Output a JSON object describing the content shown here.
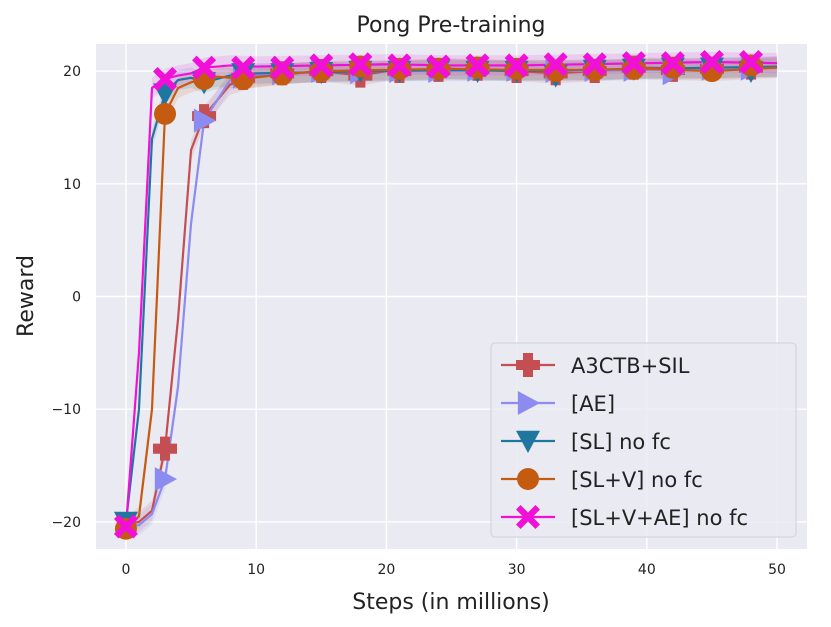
{
  "chart_data": {
    "type": "line",
    "title": "Pong Pre-training",
    "xlabel": "Steps (in millions)",
    "ylabel": "Reward",
    "xlim": [
      -2.3,
      52.3
    ],
    "ylim": [
      -22.4,
      22.4
    ],
    "xticks": [
      0,
      10,
      20,
      30,
      40,
      50
    ],
    "xtick_labels": [
      "0",
      "10",
      "20",
      "30",
      "40",
      "50"
    ],
    "yticks": [
      -20,
      -10,
      0,
      10,
      20
    ],
    "ytick_labels": [
      "−20",
      "−10",
      "0",
      "10",
      "20"
    ],
    "grid": true,
    "legend_position": "lower-right",
    "series": [
      {
        "name": "A3CTB+SIL",
        "color": "#c44e52",
        "marker": "plus",
        "x": [
          0,
          1,
          2,
          3,
          4,
          5,
          6,
          8,
          10,
          15,
          18,
          20,
          25,
          30,
          33,
          36,
          40,
          45,
          50
        ],
        "y": [
          -20.2,
          -20.0,
          -19.0,
          -13.5,
          -2.0,
          13.0,
          16.0,
          18.8,
          19.5,
          20.0,
          19.6,
          20.0,
          20.2,
          20.0,
          19.8,
          20.0,
          20.3,
          20.2,
          20.4
        ],
        "marker_x": [
          3,
          6,
          9,
          12,
          15,
          18,
          21,
          24,
          27,
          30,
          33,
          36,
          39,
          42,
          45,
          48
        ],
        "marker_y": [
          -13.5,
          16.0,
          19.4,
          19.8,
          20.0,
          19.6,
          20.0,
          20.1,
          20.2,
          20.0,
          19.8,
          20.0,
          20.3,
          20.1,
          20.2,
          20.3
        ]
      },
      {
        "name": "[AE]",
        "color": "#8c8cf0",
        "marker": "triangle-right",
        "x": [
          0,
          1,
          2,
          3,
          4,
          5,
          6,
          8,
          10,
          15,
          20,
          25,
          30,
          35,
          40,
          45,
          50
        ],
        "y": [
          -20.2,
          -20.3,
          -19.3,
          -16.2,
          -8.0,
          6.5,
          15.6,
          19.2,
          19.7,
          19.9,
          20.0,
          20.0,
          20.1,
          20.0,
          20.1,
          20.2,
          20.3
        ],
        "marker_x": [
          3,
          6,
          9,
          12,
          15,
          18,
          21,
          24,
          27,
          30,
          33,
          36,
          39,
          42,
          45,
          48
        ],
        "marker_y": [
          -16.2,
          15.6,
          19.5,
          19.8,
          20.0,
          19.9,
          20.0,
          20.0,
          20.1,
          20.1,
          20.0,
          20.1,
          20.1,
          19.8,
          20.2,
          20.2
        ]
      },
      {
        "name": "[SL] no fc",
        "color": "#1f77a0",
        "marker": "triangle-down",
        "x": [
          0,
          1,
          2,
          3,
          4,
          5,
          6,
          8,
          10,
          15,
          20,
          25,
          30,
          35,
          40,
          45,
          50
        ],
        "y": [
          -20.0,
          -10.0,
          14.0,
          18.0,
          19.2,
          19.4,
          19.0,
          19.6,
          19.8,
          19.9,
          20.0,
          20.1,
          20.0,
          20.1,
          20.2,
          20.3,
          20.4
        ],
        "marker_x": [
          0,
          3,
          6,
          9,
          12,
          15,
          18,
          21,
          24,
          27,
          30,
          33,
          36,
          39,
          42,
          45,
          48
        ],
        "marker_y": [
          -20.0,
          18.0,
          19.0,
          19.8,
          19.8,
          19.9,
          20.0,
          20.0,
          20.1,
          20.0,
          20.0,
          19.6,
          20.1,
          20.2,
          20.3,
          20.3,
          20.0
        ]
      },
      {
        "name": "[SL+V] no fc",
        "color": "#c55a11",
        "marker": "circle",
        "x": [
          0,
          1,
          2,
          3,
          4,
          5,
          6,
          7,
          9,
          12,
          15,
          20,
          25,
          30,
          35,
          40,
          45,
          50
        ],
        "y": [
          -20.6,
          -19.5,
          -10.0,
          16.2,
          18.5,
          19.0,
          19.3,
          19.5,
          19.3,
          19.7,
          20.0,
          20.1,
          20.2,
          20.1,
          20.1,
          20.2,
          20.0,
          20.3
        ],
        "marker_x": [
          0,
          3,
          6,
          9,
          12,
          15,
          18,
          21,
          24,
          27,
          30,
          33,
          36,
          39,
          42,
          45,
          48
        ],
        "marker_y": [
          -20.6,
          16.2,
          19.3,
          19.3,
          19.7,
          20.0,
          20.4,
          20.2,
          20.2,
          20.3,
          20.2,
          20.0,
          20.1,
          20.2,
          20.3,
          20.0,
          20.5
        ]
      },
      {
        "name": "[SL+V+AE] no fc",
        "color": "#f010d8",
        "marker": "x",
        "x": [
          0,
          1,
          2,
          3,
          4,
          5,
          6,
          8,
          10,
          15,
          20,
          25,
          30,
          35,
          40,
          45,
          50
        ],
        "y": [
          -20.4,
          -5.0,
          18.5,
          19.3,
          19.6,
          19.8,
          20.3,
          20.5,
          20.4,
          20.5,
          20.6,
          20.5,
          20.5,
          20.6,
          20.7,
          20.8,
          20.7
        ],
        "marker_x": [
          0,
          3,
          6,
          9,
          12,
          15,
          18,
          21,
          24,
          27,
          30,
          33,
          36,
          39,
          42,
          45,
          48
        ],
        "marker_y": [
          -20.4,
          19.3,
          20.3,
          20.3,
          20.3,
          20.5,
          20.6,
          20.5,
          20.4,
          20.5,
          20.5,
          20.6,
          20.6,
          20.7,
          20.7,
          20.8,
          20.8
        ]
      }
    ]
  }
}
